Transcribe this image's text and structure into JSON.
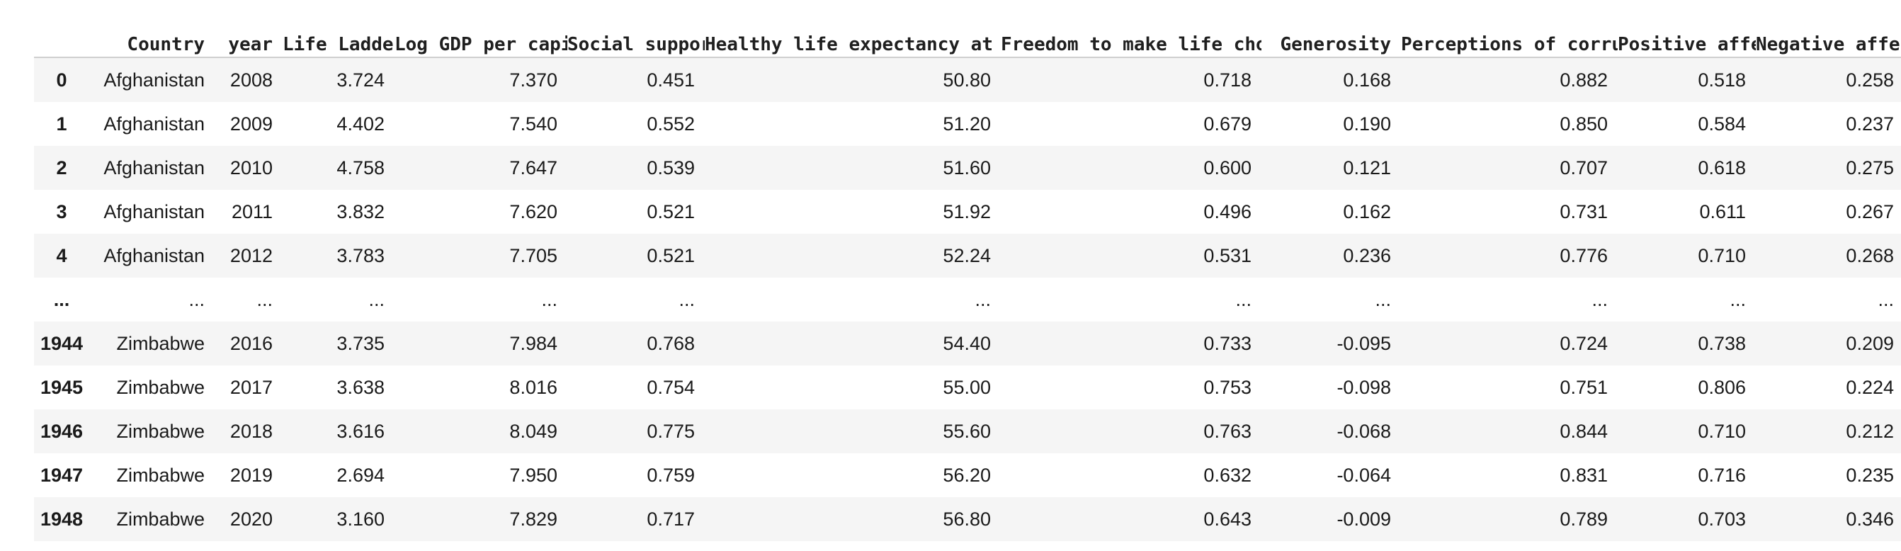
{
  "table": {
    "columns": [
      "",
      "Country",
      "year",
      "Life Ladder",
      "Log GDP per capita",
      "Social support",
      "Healthy life expectancy at birth",
      "Freedom to make life choices",
      "Generosity",
      "Perceptions of corruption",
      "Positive affect",
      "Negative affect"
    ],
    "rows": [
      {
        "index": "0",
        "cells": [
          "Afghanistan",
          "2008",
          "3.724",
          "7.370",
          "0.451",
          "50.80",
          "0.718",
          "0.168",
          "0.882",
          "0.518",
          "0.258"
        ]
      },
      {
        "index": "1",
        "cells": [
          "Afghanistan",
          "2009",
          "4.402",
          "7.540",
          "0.552",
          "51.20",
          "0.679",
          "0.190",
          "0.850",
          "0.584",
          "0.237"
        ]
      },
      {
        "index": "2",
        "cells": [
          "Afghanistan",
          "2010",
          "4.758",
          "7.647",
          "0.539",
          "51.60",
          "0.600",
          "0.121",
          "0.707",
          "0.618",
          "0.275"
        ]
      },
      {
        "index": "3",
        "cells": [
          "Afghanistan",
          "2011",
          "3.832",
          "7.620",
          "0.521",
          "51.92",
          "0.496",
          "0.162",
          "0.731",
          "0.611",
          "0.267"
        ]
      },
      {
        "index": "4",
        "cells": [
          "Afghanistan",
          "2012",
          "3.783",
          "7.705",
          "0.521",
          "52.24",
          "0.531",
          "0.236",
          "0.776",
          "0.710",
          "0.268"
        ]
      },
      {
        "index": "...",
        "cells": [
          "...",
          "...",
          "...",
          "...",
          "...",
          "...",
          "...",
          "...",
          "...",
          "...",
          "..."
        ]
      },
      {
        "index": "1944",
        "cells": [
          "Zimbabwe",
          "2016",
          "3.735",
          "7.984",
          "0.768",
          "54.40",
          "0.733",
          "-0.095",
          "0.724",
          "0.738",
          "0.209"
        ]
      },
      {
        "index": "1945",
        "cells": [
          "Zimbabwe",
          "2017",
          "3.638",
          "8.016",
          "0.754",
          "55.00",
          "0.753",
          "-0.098",
          "0.751",
          "0.806",
          "0.224"
        ]
      },
      {
        "index": "1946",
        "cells": [
          "Zimbabwe",
          "2018",
          "3.616",
          "8.049",
          "0.775",
          "55.60",
          "0.763",
          "-0.068",
          "0.844",
          "0.710",
          "0.212"
        ]
      },
      {
        "index": "1947",
        "cells": [
          "Zimbabwe",
          "2019",
          "2.694",
          "7.950",
          "0.759",
          "56.20",
          "0.632",
          "-0.064",
          "0.831",
          "0.716",
          "0.235"
        ]
      },
      {
        "index": "1948",
        "cells": [
          "Zimbabwe",
          "2020",
          "3.160",
          "7.829",
          "0.717",
          "56.80",
          "0.643",
          "-0.009",
          "0.789",
          "0.703",
          "0.346"
        ]
      }
    ]
  },
  "colors": {
    "stripe": "#f5f5f5",
    "header_rule": "#cfcfcf",
    "text": "#1a1a1a"
  }
}
